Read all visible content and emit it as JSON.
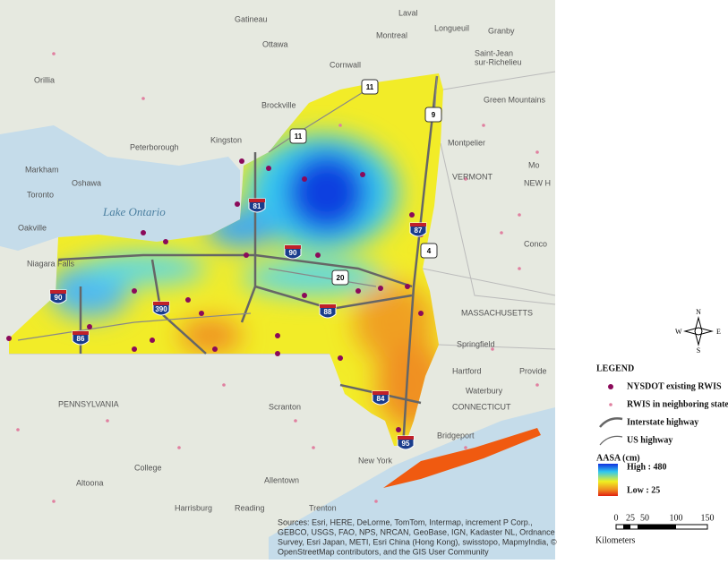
{
  "map": {
    "places": [
      "Gatineau",
      "Laval",
      "Ottawa",
      "Montreal",
      "Longueuil",
      "Granby",
      "Saint-Jean",
      "sur-Richelieu",
      "Cornwall",
      "Orillia",
      "Brockville",
      "Green Mountains",
      "Kingston",
      "Peterborough",
      "Montpelier",
      "Markham",
      "Oshawa",
      "Toronto",
      "VERMONT",
      "Oakville",
      "Niagara Falls",
      "Conco",
      "MASSACHUSETTS",
      "Springfield",
      "Hartford",
      "Provide",
      "PENNSYLVANIA",
      "Scranton",
      "CONNECTICUT",
      "Waterbury",
      "Bridgeport",
      "New York",
      "Allentown",
      "Harrisburg",
      "Reading",
      "Trenton",
      "Altoona",
      "College",
      "Mo",
      "NEW H"
    ],
    "water": "Lake Ontario",
    "shields": [
      "11",
      "9",
      "11",
      "81",
      "87",
      "4",
      "90",
      "20",
      "88",
      "90",
      "390",
      "86",
      "84",
      "95"
    ],
    "attribution": [
      "Sources: Esri, HERE, DeLorme, TomTom, Intermap, increment P Corp.,",
      "GEBCO, USGS, FAO, NPS, NRCAN, GeoBase, IGN, Kadaster NL, Ordnance",
      "Survey, Esri Japan, METI, Esri China (Hong Kong), swisstopo, MapmyIndia, ©",
      "OpenStreetMap contributors, and the GIS User Community"
    ]
  },
  "compass": {
    "n": "N",
    "s": "S",
    "e": "E",
    "w": "W"
  },
  "legend": {
    "title": "LEGEND",
    "items": [
      "NYSDOT existing RWIS",
      "RWIS in neighboring states",
      "Interstate highway",
      "US highway"
    ],
    "color_title": "AASA (cm)",
    "high": "High : 480",
    "low": "Low : 25"
  },
  "scale": {
    "ticks": [
      "0",
      "25",
      "50",
      "100",
      "150"
    ],
    "unit": "Kilometers"
  }
}
